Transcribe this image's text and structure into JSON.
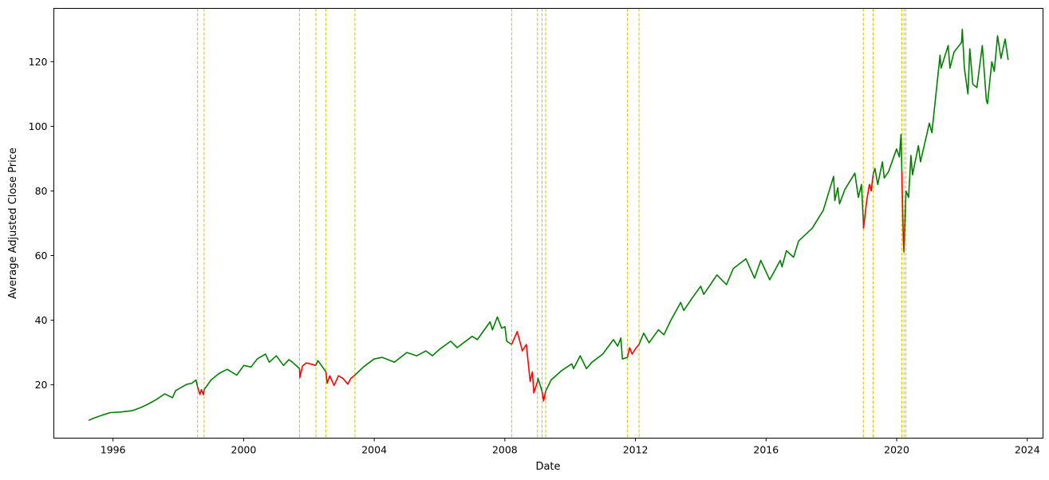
{
  "chart_data": {
    "type": "line",
    "xlabel": "Date",
    "ylabel": "Average Adjusted Close Price",
    "xlim": [
      "1994-03-10",
      "2024-06-25"
    ],
    "ylim": [
      3.5,
      136.5
    ],
    "x_ticks": [
      "1996",
      "2000",
      "2004",
      "2008",
      "2012",
      "2016",
      "2020",
      "2024"
    ],
    "y_ticks": [
      20,
      40,
      60,
      80,
      100,
      120
    ],
    "grid": false,
    "legend": "none",
    "colors": {
      "normal": "#008000",
      "drawdown": "#ff0000",
      "marker": "#d4c200"
    },
    "markers": [
      "1998-08-04",
      "1998-10-16",
      "2001-09-17",
      "2002-03-19",
      "2002-07-10",
      "2003-05-30",
      "2008-03-17",
      "2008-12-31",
      "2009-02-20",
      "2009-04-01",
      "2011-10-04",
      "2012-02-10",
      "2018-12-24",
      "2019-04-12",
      "2020-02-28",
      "2020-03-23",
      "2020-04-14"
    ],
    "series": [
      {
        "segment": "normal",
        "x": [
          "1995-04-03",
          "1995-06-01",
          "1995-09-01",
          "1995-12-01",
          "1996-04-01",
          "1996-08-01",
          "1996-11-01",
          "1997-02-01",
          "1997-05-01",
          "1997-08-01",
          "1997-10-27",
          "1997-12-01",
          "1998-02-01",
          "1998-04-01",
          "1998-06-01",
          "1998-07-17",
          "1998-08-04"
        ],
        "y": [
          9.0,
          9.7,
          10.6,
          11.4,
          11.6,
          12.0,
          12.9,
          14.1,
          15.5,
          17.2,
          16.0,
          18.2,
          19.2,
          20.1,
          20.5,
          21.5,
          19.3
        ]
      },
      {
        "segment": "drawdown",
        "x": [
          "1998-08-04",
          "1998-08-31",
          "1998-09-15",
          "1998-10-08",
          "1998-10-16"
        ],
        "y": [
          19.3,
          17.0,
          18.5,
          16.9,
          18.5
        ]
      },
      {
        "segment": "normal",
        "x": [
          "1998-10-16",
          "1999-01-01",
          "1999-04-01",
          "1999-07-01",
          "1999-10-15",
          "2000-01-03",
          "2000-03-24",
          "2000-06-01",
          "2000-09-01",
          "2000-10-13",
          "2001-01-01",
          "2001-03-22",
          "2001-05-21",
          "2001-07-01",
          "2001-09-17"
        ],
        "y": [
          18.5,
          21.5,
          23.5,
          24.8,
          23.0,
          26.0,
          25.5,
          28.0,
          29.5,
          27.0,
          29.0,
          26.0,
          27.8,
          27.0,
          25.0
        ]
      },
      {
        "segment": "drawdown",
        "x": [
          "2001-09-17",
          "2001-09-21",
          "2001-10-20",
          "2001-12-01",
          "2002-01-15",
          "2002-03-19"
        ],
        "y": [
          25.0,
          22.3,
          25.8,
          26.8,
          26.5,
          26.0
        ]
      },
      {
        "segment": "normal",
        "x": [
          "2002-03-19",
          "2002-04-10",
          "2002-05-20",
          "2002-07-10"
        ],
        "y": [
          26.0,
          27.5,
          26.0,
          24.0
        ]
      },
      {
        "segment": "drawdown",
        "x": [
          "2002-07-10",
          "2002-07-23",
          "2002-08-22",
          "2002-10-09",
          "2002-11-27",
          "2003-01-15",
          "2003-03-11",
          "2003-04-15",
          "2003-05-30"
        ],
        "y": [
          24.0,
          20.5,
          22.8,
          19.8,
          22.8,
          22.0,
          20.2,
          22.0,
          23.0
        ]
      },
      {
        "segment": "normal",
        "x": [
          "2003-05-30",
          "2003-09-01",
          "2003-12-31",
          "2004-04-01",
          "2004-08-13",
          "2004-12-31",
          "2005-04-20",
          "2005-08-01",
          "2005-10-13",
          "2005-12-31",
          "2006-05-05",
          "2006-07-17",
          "2006-12-31",
          "2007-02-27",
          "2007-07-19",
          "2007-08-15",
          "2007-10-09",
          "2007-11-26",
          "2008-01-02",
          "2008-01-22",
          "2008-03-17"
        ],
        "y": [
          23.0,
          25.5,
          28.0,
          28.5,
          27.0,
          30.0,
          29.0,
          30.5,
          29.0,
          31.0,
          33.5,
          31.5,
          35.0,
          34.0,
          39.5,
          37.0,
          41.0,
          37.5,
          38.0,
          33.5,
          32.5
        ]
      },
      {
        "segment": "drawdown",
        "x": [
          "2008-03-17",
          "2008-05-19",
          "2008-07-15",
          "2008-08-28",
          "2008-10-10",
          "2008-11-04",
          "2008-11-20",
          "2008-12-31"
        ],
        "y": [
          32.5,
          36.5,
          30.5,
          32.5,
          21.0,
          24.0,
          17.5,
          21.0
        ]
      },
      {
        "segment": "normal",
        "x": [
          "2008-12-31",
          "2009-01-06",
          "2009-02-20"
        ],
        "y": [
          21.0,
          22.0,
          18.0
        ]
      },
      {
        "segment": "drawdown",
        "x": [
          "2009-02-20",
          "2009-03-09",
          "2009-04-01"
        ],
        "y": [
          18.0,
          15.0,
          18.0
        ]
      },
      {
        "segment": "normal",
        "x": [
          "2009-04-01",
          "2009-06-01",
          "2009-10-01",
          "2010-01-19",
          "2010-02-08",
          "2010-04-23",
          "2010-07-02",
          "2010-09-01",
          "2010-12-31",
          "2011-04-29",
          "2011-06-16",
          "2011-07-22",
          "2011-08-08",
          "2011-10-04"
        ],
        "y": [
          18.0,
          21.5,
          24.5,
          26.5,
          25.0,
          29.0,
          25.0,
          27.0,
          29.5,
          34.0,
          32.0,
          34.5,
          28.0,
          28.5
        ]
      },
      {
        "segment": "drawdown",
        "x": [
          "2011-10-04",
          "2011-10-27",
          "2011-11-25",
          "2012-01-10",
          "2012-02-10"
        ],
        "y": [
          28.5,
          31.5,
          29.5,
          31.5,
          32.5
        ]
      },
      {
        "segment": "normal",
        "x": [
          "2012-02-10",
          "2012-04-02",
          "2012-06-01",
          "2012-09-14",
          "2012-11-15",
          "2013-01-31",
          "2013-05-21",
          "2013-06-24",
          "2013-09-30",
          "2013-12-31",
          "2014-02-03",
          "2014-06-30",
          "2014-10-15",
          "2014-12-31",
          "2015-05-21",
          "2015-08-25",
          "2015-11-03",
          "2016-02-11",
          "2016-06-08",
          "2016-06-27",
          "2016-08-15",
          "2016-11-04",
          "2016-12-30",
          "2017-06-01",
          "2017-10-02",
          "2018-01-26",
          "2018-02-08",
          "2018-03-13",
          "2018-04-02",
          "2018-06-01",
          "2018-09-20",
          "2018-10-29",
          "2018-12-03",
          "2018-12-24"
        ],
        "y": [
          32.5,
          36.0,
          33.0,
          37.0,
          35.5,
          40.0,
          45.5,
          43.0,
          47.0,
          50.5,
          48.0,
          54.0,
          51.0,
          56.0,
          59.0,
          53.0,
          58.5,
          52.5,
          58.5,
          56.5,
          61.5,
          59.5,
          64.5,
          68.5,
          74.0,
          84.5,
          77.0,
          81.0,
          76.0,
          80.5,
          85.5,
          78.0,
          82.0,
          71.0
        ]
      },
      {
        "segment": "drawdown",
        "x": [
          "2018-12-24",
          "2018-12-26",
          "2019-01-31",
          "2019-03-01",
          "2019-03-22",
          "2019-04-12"
        ],
        "y": [
          71.0,
          68.5,
          77.0,
          82.0,
          80.0,
          85.0
        ]
      },
      {
        "segment": "normal",
        "x": [
          "2019-04-12",
          "2019-05-03",
          "2019-06-03",
          "2019-07-26",
          "2019-08-15",
          "2019-10-02",
          "2019-12-31",
          "2020-01-31",
          "2020-02-19",
          "2020-02-28"
        ],
        "y": [
          85.0,
          87.0,
          82.0,
          89.0,
          84.0,
          86.0,
          93.0,
          90.5,
          97.5,
          86.0
        ]
      },
      {
        "segment": "drawdown",
        "x": [
          "2020-02-28",
          "2020-03-09",
          "2020-03-16",
          "2020-03-23"
        ],
        "y": [
          86.0,
          72.0,
          64.0,
          61.0
        ]
      },
      {
        "segment": "normal",
        "x": [
          "2020-03-23",
          "2020-04-14",
          "2020-05-13",
          "2020-06-08",
          "2020-06-26",
          "2020-08-31",
          "2020-09-23",
          "2020-12-31",
          "2021-01-29",
          "2021-04-30",
          "2021-05-12",
          "2021-07-30",
          "2021-08-19",
          "2021-10-04",
          "2021-12-27",
          "2022-01-04",
          "2022-01-27",
          "2022-03-08",
          "2022-03-29",
          "2022-05-02",
          "2022-06-16",
          "2022-08-16",
          "2022-09-30",
          "2022-10-13",
          "2022-11-30",
          "2022-12-28",
          "2023-02-02",
          "2023-03-13",
          "2023-04-28",
          "2023-06-01"
        ],
        "y": [
          61.0,
          80.0,
          78.0,
          91.0,
          85.0,
          94.0,
          89.0,
          101.0,
          98.0,
          122.0,
          118.0,
          125.0,
          118.0,
          123.0,
          126.0,
          130.0,
          118.0,
          110.0,
          124.0,
          113.0,
          112.0,
          125.0,
          108.0,
          107.0,
          120.0,
          117.0,
          128.0,
          121.0,
          127.0,
          120.5
        ]
      }
    ]
  }
}
